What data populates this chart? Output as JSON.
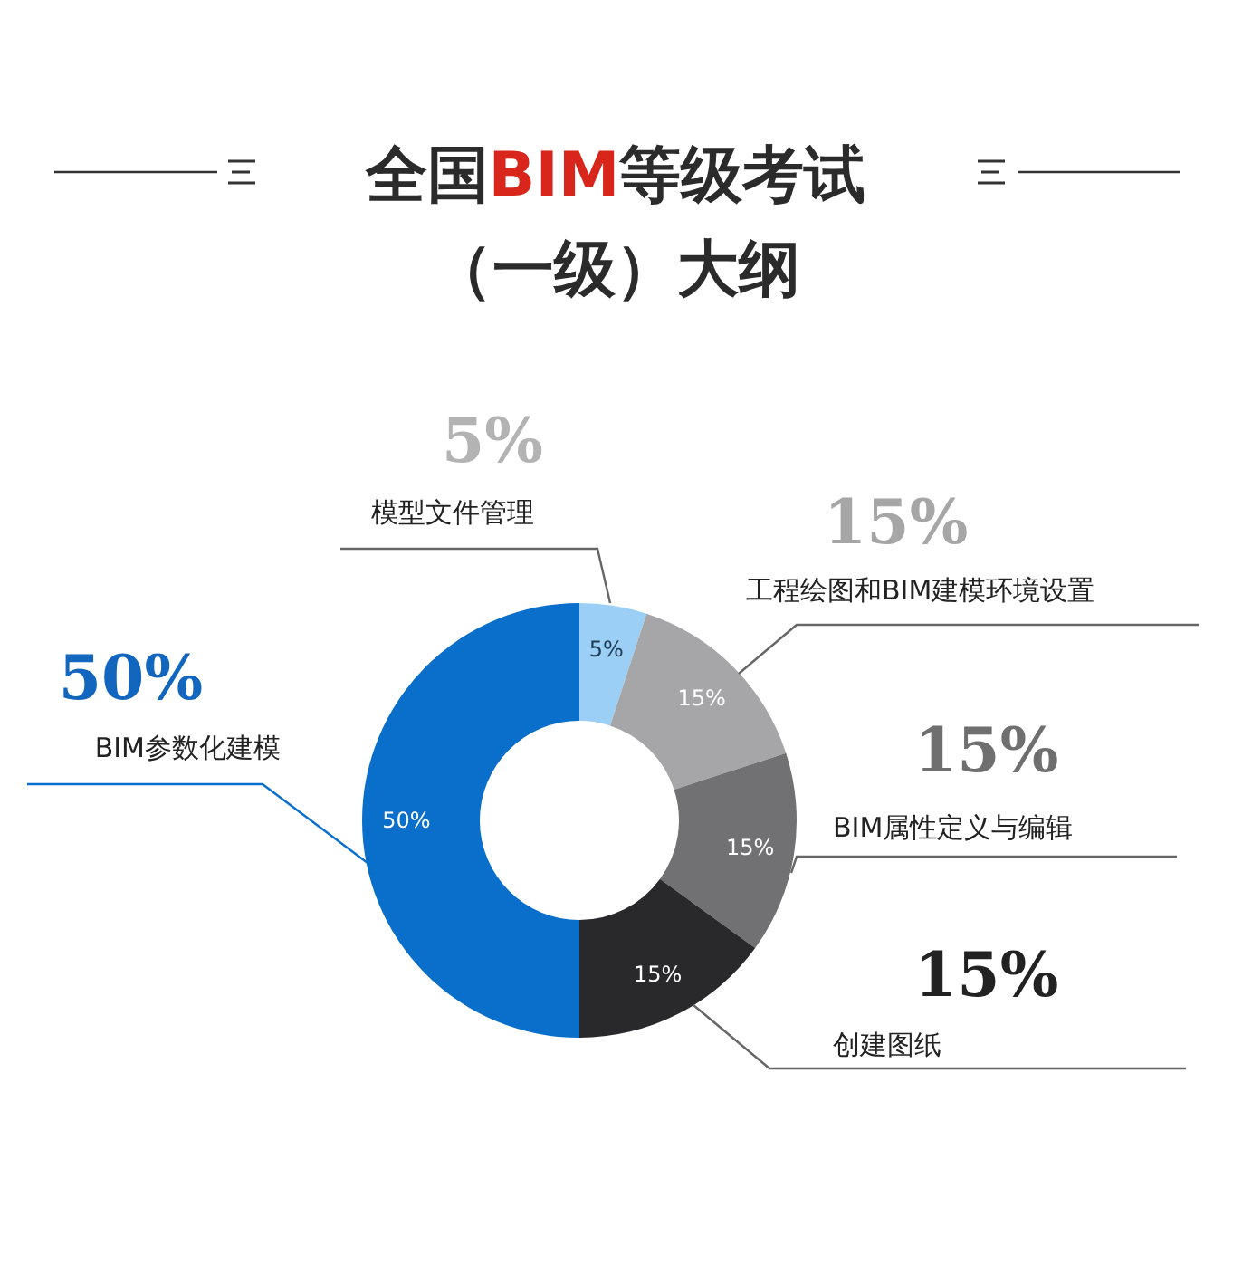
{
  "chart_data": {
    "type": "donut",
    "title": "全国BIM等级考试",
    "subtitle": "（一级）大纲",
    "categories": [
      "模型文件管理",
      "工程绘图和BIM建模环境设置",
      "BIM属性定义与编辑",
      "创建图纸",
      "BIM参数化建模"
    ],
    "values": [
      5,
      15,
      15,
      15,
      50
    ],
    "value_labels": [
      "5%",
      "15%",
      "15%",
      "15%",
      "50%"
    ],
    "colors": [
      "#9ccff5",
      "#a6a6a8",
      "#717173",
      "#29292b",
      "#0a6fca"
    ]
  }
}
